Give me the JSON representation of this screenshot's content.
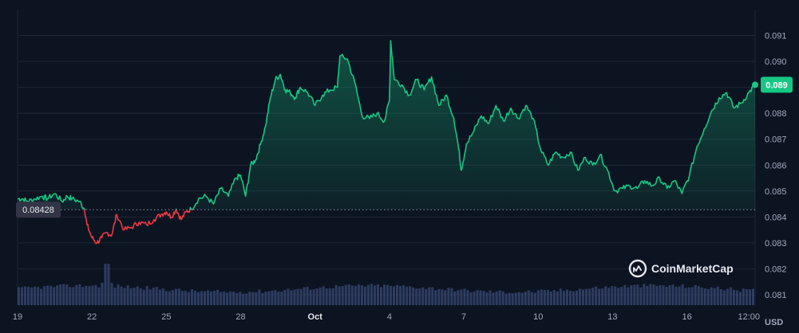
{
  "chart_data": {
    "type": "area",
    "currency_unit": "USD",
    "reference_line": {
      "label": "0.08428",
      "value": 0.08428
    },
    "current_price": {
      "label": "0.089",
      "value": 0.0891
    },
    "y_ticks": [
      "0.091",
      "0.090",
      "0.089",
      "0.088",
      "0.087",
      "0.086",
      "0.085",
      "0.084",
      "0.083",
      "0.082",
      "0.081"
    ],
    "y_tick_values": [
      0.091,
      0.09,
      0.089,
      0.088,
      0.087,
      0.086,
      0.085,
      0.084,
      0.083,
      0.082,
      0.081
    ],
    "ylim": [
      0.0806,
      0.092
    ],
    "x_ticks": [
      {
        "label": "19",
        "day": 0
      },
      {
        "label": "22",
        "day": 3
      },
      {
        "label": "25",
        "day": 6
      },
      {
        "label": "28",
        "day": 9
      },
      {
        "label": "Oct",
        "day": 12,
        "bold": true
      },
      {
        "label": "4",
        "day": 15
      },
      {
        "label": "7",
        "day": 18
      },
      {
        "label": "10",
        "day": 21
      },
      {
        "label": "13",
        "day": 24
      },
      {
        "label": "16",
        "day": 27
      },
      {
        "label": "12:00",
        "day": 29.5
      }
    ],
    "xlim": [
      0,
      29.75
    ],
    "series": {
      "x": [
        0.0,
        0.2,
        0.4,
        0.7,
        1.0,
        1.2,
        1.5,
        1.8,
        2.0,
        2.2,
        2.5,
        2.7,
        2.8,
        3.0,
        3.2,
        3.4,
        3.6,
        3.8,
        4.0,
        4.3,
        4.6,
        4.9,
        5.2,
        5.5,
        5.8,
        6.0,
        6.2,
        6.4,
        6.6,
        6.8,
        7.0,
        7.3,
        7.6,
        7.9,
        8.2,
        8.5,
        8.8,
        9.0,
        9.2,
        9.4,
        9.6,
        9.8,
        10.0,
        10.2,
        10.4,
        10.6,
        10.8,
        11.0,
        11.2,
        11.4,
        11.7,
        12.0,
        12.3,
        12.6,
        12.9,
        13.0,
        13.3,
        13.6,
        13.9,
        14.2,
        14.5,
        14.8,
        15.0,
        15.05,
        15.2,
        15.5,
        15.8,
        16.1,
        16.4,
        16.7,
        17.0,
        17.3,
        17.6,
        17.8,
        17.9,
        18.1,
        18.4,
        18.7,
        19.0,
        19.3,
        19.6,
        19.9,
        20.2,
        20.5,
        20.8,
        21.1,
        21.4,
        21.7,
        22.0,
        22.3,
        22.6,
        22.9,
        23.2,
        23.5,
        23.8,
        24.1,
        24.4,
        24.7,
        25.0,
        25.3,
        25.6,
        25.9,
        26.2,
        26.5,
        26.8,
        27.1,
        27.4,
        27.7,
        28.0,
        28.3,
        28.6,
        28.9,
        29.2,
        29.5,
        29.75
      ],
      "y": [
        0.0847,
        0.0847,
        0.0846,
        0.0847,
        0.0848,
        0.0847,
        0.0849,
        0.0846,
        0.0848,
        0.0847,
        0.0846,
        0.0843,
        0.0837,
        0.0832,
        0.083,
        0.0832,
        0.0834,
        0.0833,
        0.0841,
        0.0835,
        0.0836,
        0.0838,
        0.0837,
        0.0839,
        0.0841,
        0.0842,
        0.084,
        0.0843,
        0.0839,
        0.0842,
        0.0843,
        0.0847,
        0.0848,
        0.0845,
        0.0851,
        0.0848,
        0.0855,
        0.0856,
        0.0848,
        0.086,
        0.0862,
        0.0868,
        0.0875,
        0.0886,
        0.0893,
        0.0895,
        0.0889,
        0.0888,
        0.0886,
        0.089,
        0.0888,
        0.0883,
        0.0887,
        0.0889,
        0.089,
        0.0902,
        0.0901,
        0.0892,
        0.0879,
        0.0878,
        0.088,
        0.0877,
        0.0885,
        0.0908,
        0.0893,
        0.0891,
        0.0887,
        0.0893,
        0.0889,
        0.0894,
        0.0883,
        0.0887,
        0.0878,
        0.0866,
        0.0858,
        0.0868,
        0.0873,
        0.0879,
        0.0876,
        0.0883,
        0.0877,
        0.0882,
        0.0878,
        0.0883,
        0.0878,
        0.0866,
        0.086,
        0.0865,
        0.0863,
        0.0865,
        0.0858,
        0.0863,
        0.086,
        0.0864,
        0.0858,
        0.085,
        0.0851,
        0.0852,
        0.0851,
        0.0854,
        0.0852,
        0.0855,
        0.0851,
        0.0854,
        0.0849,
        0.0856,
        0.0867,
        0.0874,
        0.0881,
        0.0886,
        0.0888,
        0.0882,
        0.0884,
        0.0888,
        0.0891
      ]
    },
    "colors": {
      "up": "#16c784",
      "down": "#ea3943",
      "badge": "#16c784",
      "reference_badge": "#323546",
      "volume": "#3a4a78"
    },
    "volume": {
      "spike_at_day": 3.6
    },
    "legend": "none",
    "grid": true
  },
  "watermark": {
    "brand": "CoinMarketCap",
    "icon": "coinmarketcap-logo-icon"
  }
}
